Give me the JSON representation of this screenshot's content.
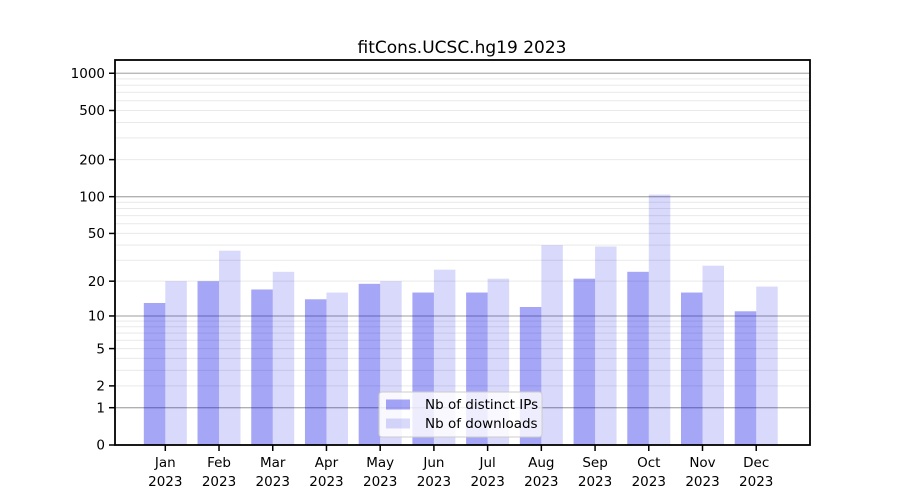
{
  "title": "fitCons.UCSC.hg19 2023",
  "chart_data": {
    "type": "bar",
    "title": "fitCons.UCSC.hg19 2023",
    "categories": [
      "Jan",
      "Feb",
      "Mar",
      "Apr",
      "May",
      "Jun",
      "Jul",
      "Aug",
      "Sep",
      "Oct",
      "Nov",
      "Dec"
    ],
    "category_year": "2023",
    "series": [
      {
        "name": "Nb of distinct IPs",
        "fill": "#0000e6",
        "opacity": 0.35,
        "values": [
          13,
          20,
          17,
          14,
          19,
          16,
          16,
          12,
          21,
          24,
          16,
          11
        ]
      },
      {
        "name": "Nb of downloads",
        "fill": "#0000e6",
        "opacity": 0.15,
        "values": [
          20,
          36,
          24,
          16,
          20,
          25,
          21,
          40,
          39,
          104,
          27,
          18
        ]
      }
    ],
    "y_scale": "log1p",
    "y_ticks": [
      0,
      1,
      2,
      5,
      10,
      20,
      50,
      100,
      200,
      500,
      1000
    ],
    "ylim": [
      0,
      1280
    ],
    "xlabel": "",
    "ylabel": "",
    "grid": "on",
    "legend_position": "lower center",
    "colors": {
      "axis": "#000000",
      "major_grid": "#b0b0b0",
      "minor_grid": "#e9e9e9",
      "legend_border": "#cccccc",
      "legend_background": "rgba(255,255,255,0.8)",
      "bar_dark_rendered": "#a6a6f6",
      "bar_light_rendered": "#d9d9fb",
      "background": "#ffffff"
    }
  }
}
